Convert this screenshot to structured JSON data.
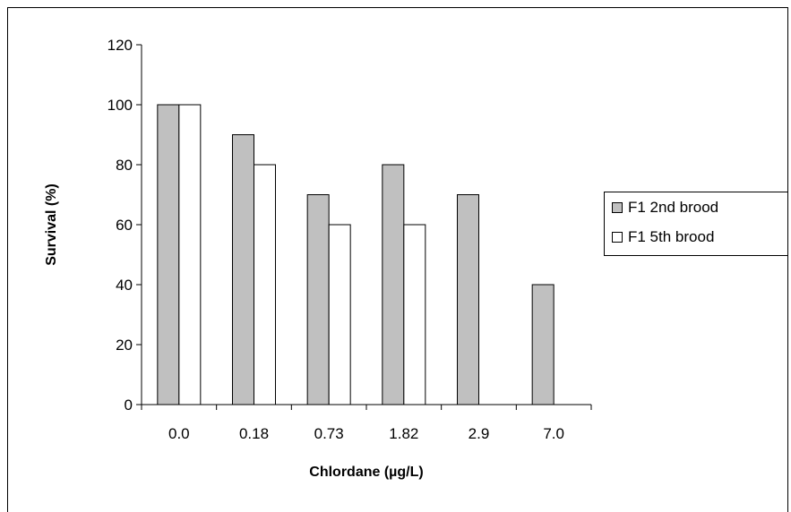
{
  "chart_data": {
    "type": "bar",
    "categories": [
      "0.0",
      "0.18",
      "0.73",
      "1.82",
      "2.9",
      "7.0"
    ],
    "series": [
      {
        "name": "F1 2nd brood",
        "values": [
          100,
          90,
          70,
          80,
          70,
          40
        ],
        "color": "#c0c0c0"
      },
      {
        "name": "F1 5th brood",
        "values": [
          100,
          80,
          60,
          60,
          null,
          null
        ],
        "color": "#ffffff"
      }
    ],
    "xlabel": "Chlordane (µg/L)",
    "ylabel": "Survival (%)",
    "ylim": [
      0,
      120
    ],
    "yticks": [
      "0",
      "20",
      "40",
      "60",
      "80",
      "100",
      "120"
    ],
    "grid": false,
    "legend_position": "right"
  }
}
